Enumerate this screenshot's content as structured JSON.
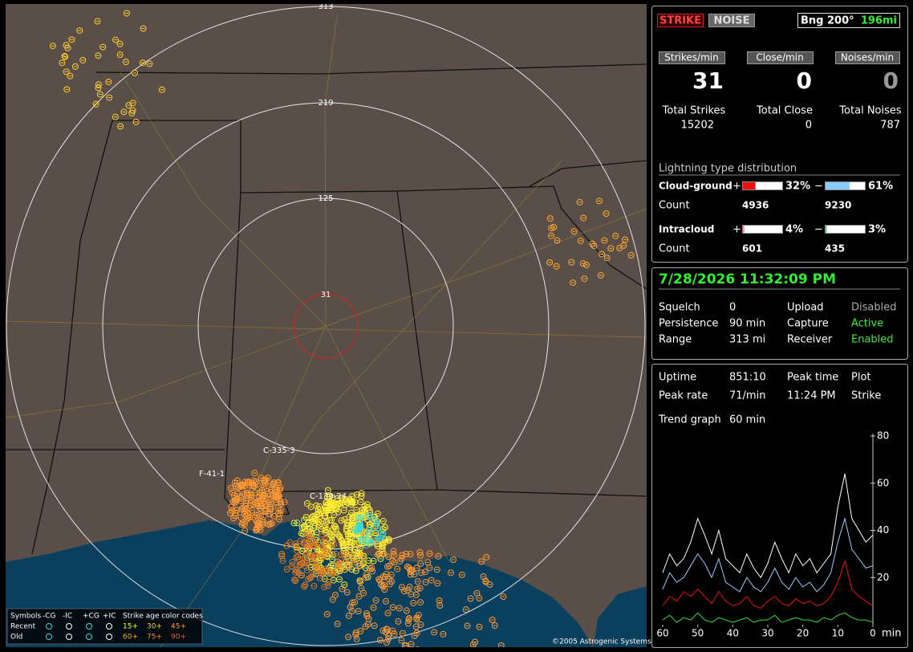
{
  "map": {
    "range_labels": [
      "313",
      "219",
      "125",
      "31"
    ],
    "storm_labels": [
      "F-41-1",
      "C-335-3",
      "C-139-24"
    ],
    "legend": {
      "symbols_title": "Symbols",
      "symbols": [
        "-CG",
        "-IC",
        "+CG",
        "+IC"
      ],
      "age_title": "Strike age color codes",
      "rows": [
        "Recent",
        "Old"
      ],
      "ages": [
        {
          "label": "15+",
          "color": "#ffff33"
        },
        {
          "label": "30+",
          "color": "#ffcc33"
        },
        {
          "label": "45+",
          "color": "#ff9933"
        },
        {
          "label": "60+",
          "color": "#ffaa22"
        },
        {
          "label": "75+",
          "color": "#ff8822"
        },
        {
          "label": "90+",
          "color": "#dd6622"
        }
      ]
    },
    "copyright": "©2005 Astrogenic Systems"
  },
  "header": {
    "strike_button": "STRIKE",
    "noise_button": "NOISE",
    "bearing": "Bng 200°",
    "distance": "196mi"
  },
  "rates": [
    {
      "label": "Strikes/min",
      "value": 31,
      "total_label": "Total Strikes",
      "total": 15202
    },
    {
      "label": "Close/min",
      "value": 0,
      "total_label": "Total Close",
      "total": 0
    },
    {
      "label": "Noises/min",
      "value": 0,
      "total_label": "Total Noises",
      "total": 787
    }
  ],
  "distribution": {
    "title": "Lightning type distribution",
    "count_label": "Count",
    "rows": [
      {
        "name": "Cloud-ground",
        "positive": {
          "sign": "+",
          "value": 32,
          "label": "32%",
          "count": 4936,
          "color": "#ee1111"
        },
        "negative": {
          "sign": "−",
          "value": 61,
          "label": "61%",
          "count": 9230,
          "color": "#88ccff"
        }
      },
      {
        "name": "Intracloud",
        "positive": {
          "sign": "+",
          "value": 4,
          "label": "4%",
          "count": 601,
          "color": "#ff88bb"
        },
        "negative": {
          "sign": "−",
          "value": 3,
          "label": "3%",
          "count": 435,
          "color": "#33dd66"
        }
      }
    ]
  },
  "status": {
    "datetime": "7/28/2026 11:32:09 PM",
    "fields": [
      {
        "label": "Squelch",
        "value": "0",
        "label2": "Upload",
        "value2": "Disabled",
        "color2": "#aaaaaa"
      },
      {
        "label": "Persistence",
        "value": "90 min",
        "label2": "Capture",
        "value2": "Active",
        "color2": "#33ee33"
      },
      {
        "label": "Range",
        "value": "313 mi",
        "label2": "Receiver",
        "value2": "Enabled",
        "color2": "#33ee33"
      }
    ]
  },
  "stats": {
    "rows": [
      [
        "Uptime",
        "851:10",
        "Peak time",
        "Plot"
      ],
      [
        "Peak rate",
        "71/min",
        "11:24 PM",
        "Strike"
      ]
    ],
    "trend_label": "Trend graph",
    "trend_window": "60 min"
  },
  "trend_graph": {
    "type": "line",
    "x": [
      60,
      58,
      56,
      54,
      52,
      50,
      48,
      46,
      44,
      42,
      40,
      38,
      36,
      34,
      32,
      30,
      28,
      26,
      24,
      22,
      20,
      18,
      16,
      14,
      12,
      10,
      8,
      6,
      4,
      2,
      0
    ],
    "series": [
      {
        "color": "#ffffff",
        "values": [
          22,
          30,
          25,
          28,
          35,
          45,
          38,
          30,
          40,
          28,
          25,
          22,
          30,
          24,
          20,
          26,
          35,
          28,
          22,
          30,
          25,
          28,
          22,
          26,
          30,
          50,
          64,
          45,
          40,
          35,
          38
        ]
      },
      {
        "color": "#99ccff",
        "values": [
          15,
          22,
          18,
          20,
          25,
          30,
          26,
          20,
          28,
          18,
          16,
          14,
          20,
          16,
          14,
          18,
          24,
          18,
          15,
          20,
          16,
          18,
          14,
          17,
          22,
          35,
          45,
          32,
          28,
          24,
          25
        ]
      },
      {
        "color": "#ee1111",
        "values": [
          8,
          12,
          10,
          14,
          12,
          15,
          12,
          9,
          14,
          10,
          8,
          9,
          12,
          8,
          7,
          10,
          12,
          9,
          8,
          11,
          9,
          10,
          8,
          9,
          12,
          18,
          27,
          15,
          12,
          10,
          8
        ]
      },
      {
        "color": "#33dd33",
        "values": [
          2,
          4,
          1,
          3,
          2,
          5,
          2,
          1,
          3,
          2,
          1,
          2,
          3,
          1,
          2,
          2,
          4,
          1,
          2,
          3,
          2,
          2,
          1,
          3,
          2,
          4,
          5,
          3,
          2,
          2,
          1
        ]
      }
    ],
    "xlim": [
      60,
      0
    ],
    "ylim": [
      0,
      80
    ],
    "xticks": [
      60,
      50,
      40,
      30,
      20,
      10,
      0
    ],
    "yticks": [
      20,
      40,
      60,
      80
    ],
    "x_unit": "min"
  }
}
